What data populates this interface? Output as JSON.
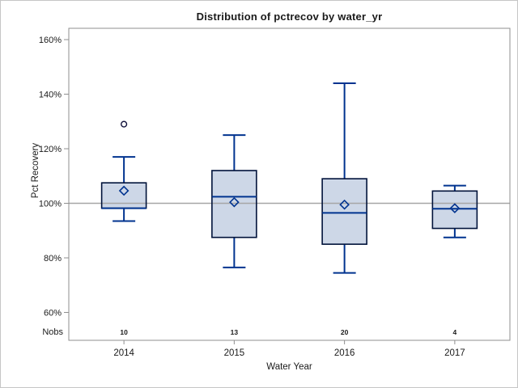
{
  "window": {
    "background": "#ffffff",
    "border_color": "#c6c6c6"
  },
  "chart_data": {
    "type": "boxplot",
    "title": "Distribution of pctrecov by water_yr",
    "xlabel": "Water Year",
    "ylabel": "Pct Recovery",
    "nobs_label": "Nobs",
    "categories": [
      "2014",
      "2015",
      "2016",
      "2017"
    ],
    "nobs": [
      "10",
      "13",
      "20",
      "4"
    ],
    "y_ticks": [
      160,
      140,
      120,
      100,
      80,
      60
    ],
    "y_tick_suffix": "%",
    "ylim": [
      50,
      164
    ],
    "reference_line": 100,
    "grid": false,
    "legend": "none",
    "series": [
      {
        "category": "2014",
        "n": 10,
        "whisker_low": 93.5,
        "q1": 98.2,
        "median": 98.2,
        "q3": 107.5,
        "whisker_high": 117,
        "mean": 104.6,
        "outliers": [
          129
        ]
      },
      {
        "category": "2015",
        "n": 13,
        "whisker_low": 76.5,
        "q1": 87.5,
        "median": 102.4,
        "q3": 112,
        "whisker_high": 125,
        "mean": 100.4,
        "outliers": []
      },
      {
        "category": "2016",
        "n": 20,
        "whisker_low": 74.5,
        "q1": 85,
        "median": 96.5,
        "q3": 109,
        "whisker_high": 144,
        "mean": 99.5,
        "outliers": []
      },
      {
        "category": "2017",
        "n": 4,
        "whisker_low": 87.5,
        "q1": 90.8,
        "median": 98,
        "q3": 104.5,
        "whisker_high": 106.5,
        "mean": 98.2,
        "outliers": []
      }
    ],
    "colors": {
      "box_fill": "#cdd7e7",
      "box_border": "#00123a",
      "line": "#00338f",
      "outlier": "#10103a",
      "reference_line": "#a6a6a6",
      "frame": "#8f8f8f",
      "text": "#1a1a1a"
    }
  }
}
